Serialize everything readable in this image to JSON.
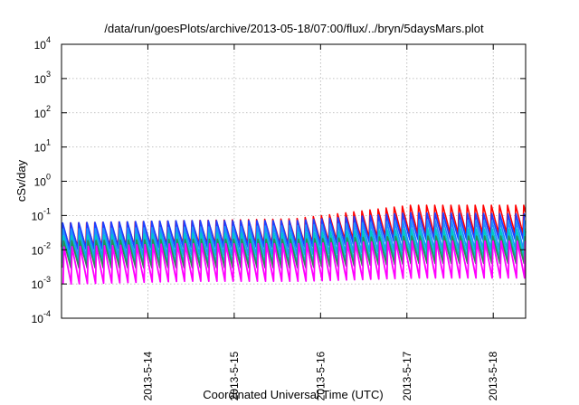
{
  "chart_data": {
    "type": "line",
    "title": "/data/run/goesPlots/archive/2013-05-18/07:00/flux/../bryn/5daysMars.plot",
    "xlabel": "Coordinated Universal Time (UTC)",
    "ylabel": "cSv/day",
    "yscale": "log",
    "ylim": [
      0.0001,
      10000
    ],
    "y_tick_exponents": [
      "-4",
      "-3",
      "-2",
      "-1",
      "0",
      "1",
      "2",
      "3",
      "4"
    ],
    "y_tick_base": "10",
    "xlim": [
      "2013-05-13 00:00",
      "2013-05-18 09:00"
    ],
    "x_ticks": [
      "2013-5-14",
      "2013-5-15",
      "2013-5-16",
      "2013-5-17",
      "2013-5-18"
    ],
    "grid": true,
    "sawtooth_period_hours": 2.25,
    "series": [
      {
        "color": "#ff0000",
        "peaks": [
          0.06,
          0.07,
          0.08,
          0.2,
          0.2
        ],
        "troughs": [
          0.012,
          0.015,
          0.015,
          0.03,
          0.03
        ]
      },
      {
        "color": "#1f3fff",
        "peaks": [
          0.06,
          0.07,
          0.07,
          0.12,
          0.11
        ],
        "troughs": [
          0.01,
          0.012,
          0.012,
          0.02,
          0.02
        ]
      },
      {
        "color": "#1e90ff",
        "peaks": [
          0.04,
          0.045,
          0.05,
          0.07,
          0.07
        ],
        "troughs": [
          0.006,
          0.007,
          0.007,
          0.01,
          0.01
        ]
      },
      {
        "color": "#00c8c8",
        "peaks": [
          0.025,
          0.03,
          0.03,
          0.04,
          0.04
        ],
        "troughs": [
          0.004,
          0.004,
          0.004,
          0.006,
          0.006
        ]
      },
      {
        "color": "#2e8b57",
        "peaks": [
          0.018,
          0.02,
          0.02,
          0.025,
          0.025
        ],
        "troughs": [
          0.003,
          0.003,
          0.003,
          0.004,
          0.004
        ]
      },
      {
        "color": "#ff00ff",
        "peaks": [
          0.012,
          0.015,
          0.015,
          0.018,
          0.018
        ],
        "troughs": [
          0.001,
          0.0012,
          0.0012,
          0.0015,
          0.0015
        ]
      }
    ]
  }
}
